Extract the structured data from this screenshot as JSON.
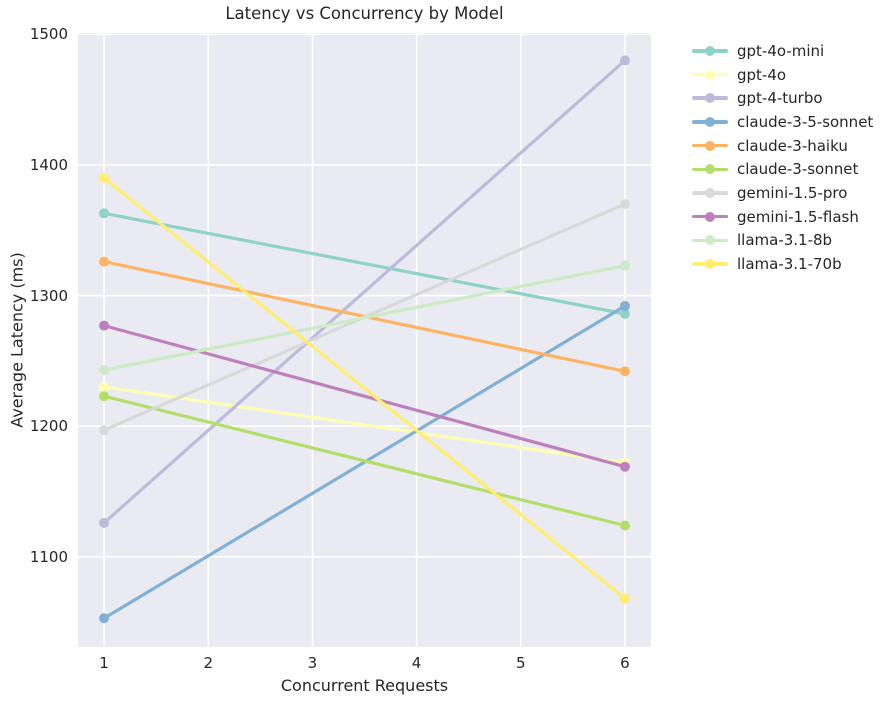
{
  "chart_data": {
    "type": "line",
    "title": "Latency vs Concurrency by Model",
    "xlabel": "Concurrent Requests",
    "ylabel": "Average Latency (ms)",
    "x": [
      1,
      6
    ],
    "series": [
      {
        "name": "gpt-4o-mini",
        "color": "#8dd3c7",
        "values": [
          1363,
          1286
        ]
      },
      {
        "name": "gpt-4o",
        "color": "#ffffb3",
        "values": [
          1230,
          1172
        ]
      },
      {
        "name": "gpt-4-turbo",
        "color": "#bebada",
        "values": [
          1126,
          1480
        ]
      },
      {
        "name": "claude-3-5-sonnet",
        "color": "#80b1d3",
        "values": [
          1053,
          1292
        ]
      },
      {
        "name": "claude-3-haiku",
        "color": "#fdb462",
        "values": [
          1326,
          1242
        ]
      },
      {
        "name": "claude-3-sonnet",
        "color": "#b3de69",
        "values": [
          1223,
          1124
        ]
      },
      {
        "name": "gemini-1.5-pro",
        "color": "#d9d9d9",
        "values": [
          1197,
          1370
        ]
      },
      {
        "name": "gemini-1.5-flash",
        "color": "#bc80bd",
        "values": [
          1277,
          1169
        ]
      },
      {
        "name": "llama-3.1-8b",
        "color": "#ccebc5",
        "values": [
          1243,
          1323
        ]
      },
      {
        "name": "llama-3.1-70b",
        "color": "#ffed6f",
        "values": [
          1390,
          1068
        ]
      }
    ],
    "x_ticks": [
      1,
      2,
      3,
      4,
      5,
      6
    ],
    "y_ticks": [
      1100,
      1200,
      1300,
      1400,
      1500
    ],
    "xlim": [
      0.75,
      6.25
    ],
    "ylim": [
      1031,
      1501
    ],
    "grid": true,
    "legend_position": "right-outside",
    "figure_background": "#ffffff",
    "axes_background": "#eaeaf2",
    "grid_color": "#ffffff",
    "text_color": "#262626"
  }
}
